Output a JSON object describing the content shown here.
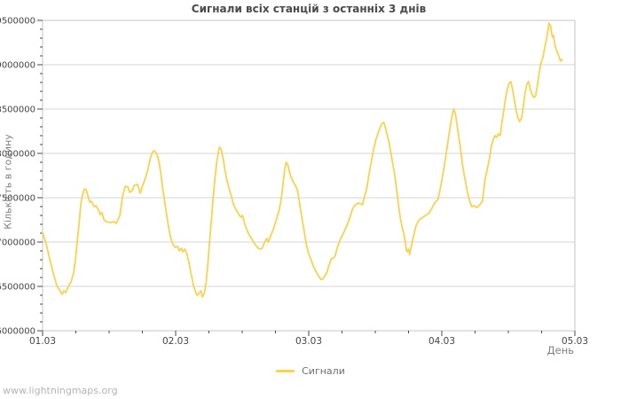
{
  "page": {
    "title": "Сигнали всіх станцій з останніх 3 днів",
    "watermark": "www.lightningmaps.org"
  },
  "legend": {
    "label": "Сигнали"
  },
  "colors": {
    "background": "#ffffff",
    "line": "#FBD14E",
    "grid": "#d4d4d4",
    "border": "#c6c6c6",
    "tick": "#4a4a4a",
    "title_text": "#4a4a4a",
    "tick_label_text": "#454545",
    "axis_title_text": "#808080",
    "legend_text": "#6e6e6e",
    "watermark_text": "#b4b4b4"
  },
  "chart_data": {
    "type": "line",
    "title": "Сигнали всіх станцій з останніх 3 днів",
    "xlabel": "День",
    "ylabel": "Кількість в годину",
    "x_tick_labels": [
      "01.03",
      "02.03",
      "03.03",
      "04.03",
      "05.03"
    ],
    "y_ticks": [
      6000000,
      6500000,
      7000000,
      7500000,
      8000000,
      8500000,
      9000000,
      9500000
    ],
    "ylim": [
      6000000,
      9500000
    ],
    "xlim": [
      0,
      4
    ],
    "x_minor_step": 0.25,
    "y_minor_step": 100000,
    "grid": "horizontal-only",
    "legend_position": "bottom-center",
    "x_unit": "days since 01.03",
    "y_unit": "signals per hour",
    "series": [
      {
        "name": "Сигнали",
        "color": "#FBD14E",
        "points": [
          [
            0.0,
            7110000
          ],
          [
            0.027,
            6980000
          ],
          [
            0.053,
            6810000
          ],
          [
            0.08,
            6650000
          ],
          [
            0.107,
            6510000
          ],
          [
            0.127,
            6460000
          ],
          [
            0.147,
            6410000
          ],
          [
            0.16,
            6450000
          ],
          [
            0.174,
            6430000
          ],
          [
            0.194,
            6500000
          ],
          [
            0.214,
            6550000
          ],
          [
            0.234,
            6660000
          ],
          [
            0.247,
            6800000
          ],
          [
            0.26,
            7000000
          ],
          [
            0.274,
            7200000
          ],
          [
            0.287,
            7420000
          ],
          [
            0.3,
            7530000
          ],
          [
            0.314,
            7600000
          ],
          [
            0.327,
            7590000
          ],
          [
            0.341,
            7520000
          ],
          [
            0.354,
            7450000
          ],
          [
            0.367,
            7460000
          ],
          [
            0.387,
            7400000
          ],
          [
            0.401,
            7410000
          ],
          [
            0.421,
            7360000
          ],
          [
            0.434,
            7310000
          ],
          [
            0.447,
            7330000
          ],
          [
            0.461,
            7250000
          ],
          [
            0.481,
            7230000
          ],
          [
            0.507,
            7220000
          ],
          [
            0.534,
            7230000
          ],
          [
            0.554,
            7210000
          ],
          [
            0.581,
            7300000
          ],
          [
            0.601,
            7510000
          ],
          [
            0.621,
            7630000
          ],
          [
            0.641,
            7620000
          ],
          [
            0.654,
            7560000
          ],
          [
            0.674,
            7580000
          ],
          [
            0.688,
            7640000
          ],
          [
            0.714,
            7650000
          ],
          [
            0.734,
            7550000
          ],
          [
            0.748,
            7620000
          ],
          [
            0.768,
            7700000
          ],
          [
            0.788,
            7800000
          ],
          [
            0.808,
            7930000
          ],
          [
            0.821,
            8000000
          ],
          [
            0.835,
            8030000
          ],
          [
            0.848,
            8020000
          ],
          [
            0.861,
            7980000
          ],
          [
            0.875,
            7900000
          ],
          [
            0.888,
            7780000
          ],
          [
            0.901,
            7620000
          ],
          [
            0.915,
            7480000
          ],
          [
            0.928,
            7350000
          ],
          [
            0.941,
            7220000
          ],
          [
            0.955,
            7100000
          ],
          [
            0.968,
            7020000
          ],
          [
            0.982,
            6970000
          ],
          [
            0.995,
            6940000
          ],
          [
            1.015,
            6950000
          ],
          [
            1.028,
            6900000
          ],
          [
            1.042,
            6930000
          ],
          [
            1.055,
            6890000
          ],
          [
            1.068,
            6920000
          ],
          [
            1.082,
            6880000
          ],
          [
            1.095,
            6800000
          ],
          [
            1.108,
            6700000
          ],
          [
            1.122,
            6600000
          ],
          [
            1.135,
            6500000
          ],
          [
            1.149,
            6440000
          ],
          [
            1.162,
            6400000
          ],
          [
            1.175,
            6420000
          ],
          [
            1.189,
            6450000
          ],
          [
            1.202,
            6380000
          ],
          [
            1.215,
            6420000
          ],
          [
            1.229,
            6550000
          ],
          [
            1.242,
            6750000
          ],
          [
            1.255,
            7000000
          ],
          [
            1.269,
            7250000
          ],
          [
            1.282,
            7500000
          ],
          [
            1.295,
            7720000
          ],
          [
            1.309,
            7900000
          ],
          [
            1.322,
            8020000
          ],
          [
            1.329,
            8070000
          ],
          [
            1.342,
            8050000
          ],
          [
            1.356,
            7950000
          ],
          [
            1.369,
            7830000
          ],
          [
            1.382,
            7720000
          ],
          [
            1.402,
            7600000
          ],
          [
            1.416,
            7530000
          ],
          [
            1.436,
            7420000
          ],
          [
            1.456,
            7360000
          ],
          [
            1.476,
            7310000
          ],
          [
            1.489,
            7280000
          ],
          [
            1.503,
            7300000
          ],
          [
            1.516,
            7220000
          ],
          [
            1.529,
            7160000
          ],
          [
            1.549,
            7090000
          ],
          [
            1.569,
            7040000
          ],
          [
            1.589,
            6990000
          ],
          [
            1.609,
            6950000
          ],
          [
            1.629,
            6920000
          ],
          [
            1.649,
            6930000
          ],
          [
            1.669,
            7000000
          ],
          [
            1.683,
            7040000
          ],
          [
            1.696,
            7000000
          ],
          [
            1.716,
            7080000
          ],
          [
            1.736,
            7150000
          ],
          [
            1.756,
            7250000
          ],
          [
            1.776,
            7350000
          ],
          [
            1.79,
            7450000
          ],
          [
            1.803,
            7600000
          ],
          [
            1.816,
            7780000
          ],
          [
            1.83,
            7900000
          ],
          [
            1.843,
            7870000
          ],
          [
            1.863,
            7750000
          ],
          [
            1.883,
            7680000
          ],
          [
            1.903,
            7630000
          ],
          [
            1.916,
            7580000
          ],
          [
            1.93,
            7450000
          ],
          [
            1.95,
            7260000
          ],
          [
            1.963,
            7150000
          ],
          [
            1.983,
            6970000
          ],
          [
            1.997,
            6880000
          ],
          [
            2.017,
            6800000
          ],
          [
            2.037,
            6720000
          ],
          [
            2.057,
            6660000
          ],
          [
            2.077,
            6610000
          ],
          [
            2.09,
            6580000
          ],
          [
            2.103,
            6580000
          ],
          [
            2.117,
            6610000
          ],
          [
            2.137,
            6660000
          ],
          [
            2.15,
            6730000
          ],
          [
            2.17,
            6810000
          ],
          [
            2.184,
            6820000
          ],
          [
            2.197,
            6840000
          ],
          [
            2.217,
            6950000
          ],
          [
            2.237,
            7030000
          ],
          [
            2.257,
            7090000
          ],
          [
            2.27,
            7130000
          ],
          [
            2.29,
            7200000
          ],
          [
            2.31,
            7280000
          ],
          [
            2.331,
            7380000
          ],
          [
            2.351,
            7420000
          ],
          [
            2.371,
            7440000
          ],
          [
            2.391,
            7430000
          ],
          [
            2.404,
            7420000
          ],
          [
            2.417,
            7500000
          ],
          [
            2.437,
            7610000
          ],
          [
            2.451,
            7750000
          ],
          [
            2.471,
            7910000
          ],
          [
            2.484,
            8020000
          ],
          [
            2.504,
            8150000
          ],
          [
            2.524,
            8240000
          ],
          [
            2.538,
            8300000
          ],
          [
            2.551,
            8340000
          ],
          [
            2.564,
            8350000
          ],
          [
            2.578,
            8280000
          ],
          [
            2.591,
            8200000
          ],
          [
            2.604,
            8120000
          ],
          [
            2.618,
            8000000
          ],
          [
            2.638,
            7830000
          ],
          [
            2.651,
            7710000
          ],
          [
            2.664,
            7550000
          ],
          [
            2.678,
            7380000
          ],
          [
            2.691,
            7250000
          ],
          [
            2.705,
            7150000
          ],
          [
            2.718,
            7070000
          ],
          [
            2.731,
            6950000
          ],
          [
            2.738,
            6890000
          ],
          [
            2.751,
            6920000
          ],
          [
            2.758,
            6860000
          ],
          [
            2.771,
            6950000
          ],
          [
            2.785,
            7050000
          ],
          [
            2.805,
            7180000
          ],
          [
            2.825,
            7240000
          ],
          [
            2.838,
            7260000
          ],
          [
            2.858,
            7280000
          ],
          [
            2.878,
            7300000
          ],
          [
            2.891,
            7310000
          ],
          [
            2.905,
            7330000
          ],
          [
            2.925,
            7380000
          ],
          [
            2.945,
            7440000
          ],
          [
            2.958,
            7460000
          ],
          [
            2.971,
            7480000
          ],
          [
            2.985,
            7580000
          ],
          [
            2.998,
            7680000
          ],
          [
            3.018,
            7850000
          ],
          [
            3.038,
            8050000
          ],
          [
            3.058,
            8250000
          ],
          [
            3.072,
            8380000
          ],
          [
            3.085,
            8480000
          ],
          [
            3.092,
            8500000
          ],
          [
            3.105,
            8420000
          ],
          [
            3.118,
            8280000
          ],
          [
            3.138,
            8080000
          ],
          [
            3.158,
            7850000
          ],
          [
            3.178,
            7680000
          ],
          [
            3.199,
            7520000
          ],
          [
            3.212,
            7450000
          ],
          [
            3.225,
            7400000
          ],
          [
            3.245,
            7410000
          ],
          [
            3.259,
            7390000
          ],
          [
            3.272,
            7400000
          ],
          [
            3.285,
            7420000
          ],
          [
            3.305,
            7460000
          ],
          [
            3.325,
            7710000
          ],
          [
            3.345,
            7850000
          ],
          [
            3.359,
            7950000
          ],
          [
            3.372,
            8080000
          ],
          [
            3.385,
            8150000
          ],
          [
            3.399,
            8200000
          ],
          [
            3.412,
            8180000
          ],
          [
            3.425,
            8220000
          ],
          [
            3.439,
            8200000
          ],
          [
            3.452,
            8350000
          ],
          [
            3.465,
            8480000
          ],
          [
            3.479,
            8620000
          ],
          [
            3.492,
            8720000
          ],
          [
            3.505,
            8790000
          ],
          [
            3.519,
            8810000
          ],
          [
            3.532,
            8720000
          ],
          [
            3.545,
            8600000
          ],
          [
            3.559,
            8480000
          ],
          [
            3.572,
            8400000
          ],
          [
            3.585,
            8360000
          ],
          [
            3.599,
            8400000
          ],
          [
            3.612,
            8520000
          ],
          [
            3.625,
            8680000
          ],
          [
            3.639,
            8780000
          ],
          [
            3.652,
            8810000
          ],
          [
            3.665,
            8720000
          ],
          [
            3.679,
            8660000
          ],
          [
            3.692,
            8630000
          ],
          [
            3.705,
            8650000
          ],
          [
            3.719,
            8780000
          ],
          [
            3.732,
            8910000
          ],
          [
            3.745,
            9020000
          ],
          [
            3.759,
            9080000
          ],
          [
            3.772,
            9180000
          ],
          [
            3.785,
            9280000
          ],
          [
            3.799,
            9400000
          ],
          [
            3.805,
            9470000
          ],
          [
            3.819,
            9430000
          ],
          [
            3.825,
            9350000
          ],
          [
            3.832,
            9310000
          ],
          [
            3.839,
            9330000
          ],
          [
            3.852,
            9210000
          ],
          [
            3.865,
            9150000
          ],
          [
            3.879,
            9100000
          ],
          [
            3.892,
            9040000
          ],
          [
            3.905,
            9060000
          ]
        ]
      }
    ]
  }
}
